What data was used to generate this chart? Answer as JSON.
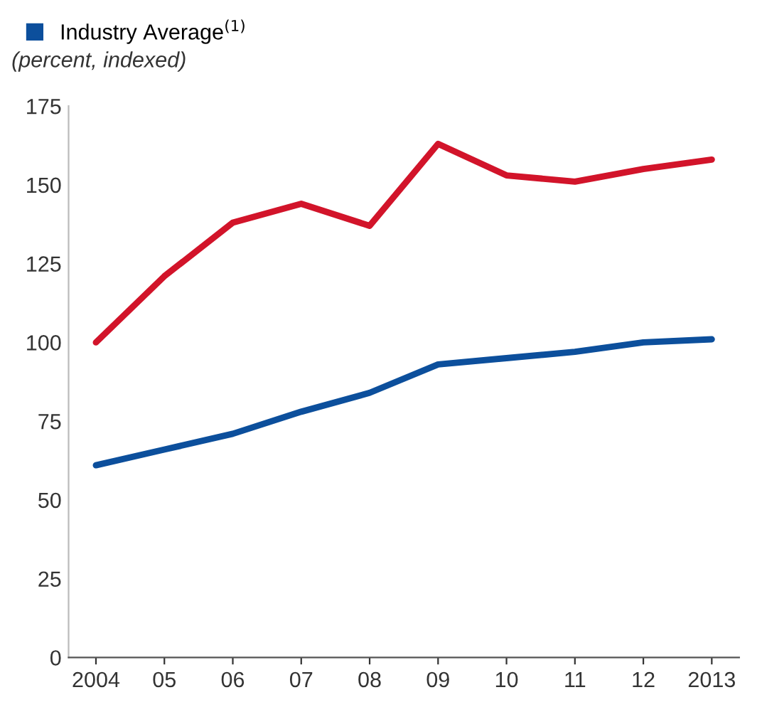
{
  "chart_data": {
    "type": "line",
    "subtitle": "(percent, indexed)",
    "categories": [
      "2004",
      "05",
      "06",
      "07",
      "08",
      "09",
      "10",
      "11",
      "12",
      "2013"
    ],
    "series": [
      {
        "color": "#d2142a",
        "values": [
          100,
          121,
          138,
          144,
          137,
          163,
          153,
          151,
          155,
          158
        ]
      },
      {
        "name": "Industry Average$^{(1)}$",
        "color": "#0c4f9c",
        "values": [
          61,
          66,
          71,
          78,
          84,
          93,
          95,
          97,
          100,
          101
        ]
      }
    ],
    "ylim": [
      0,
      175
    ],
    "yticks": [
      0,
      25,
      50,
      75,
      100,
      125,
      150,
      175
    ],
    "grid": false,
    "legend": "top left",
    "marker": "none",
    "line_style": "solid"
  }
}
